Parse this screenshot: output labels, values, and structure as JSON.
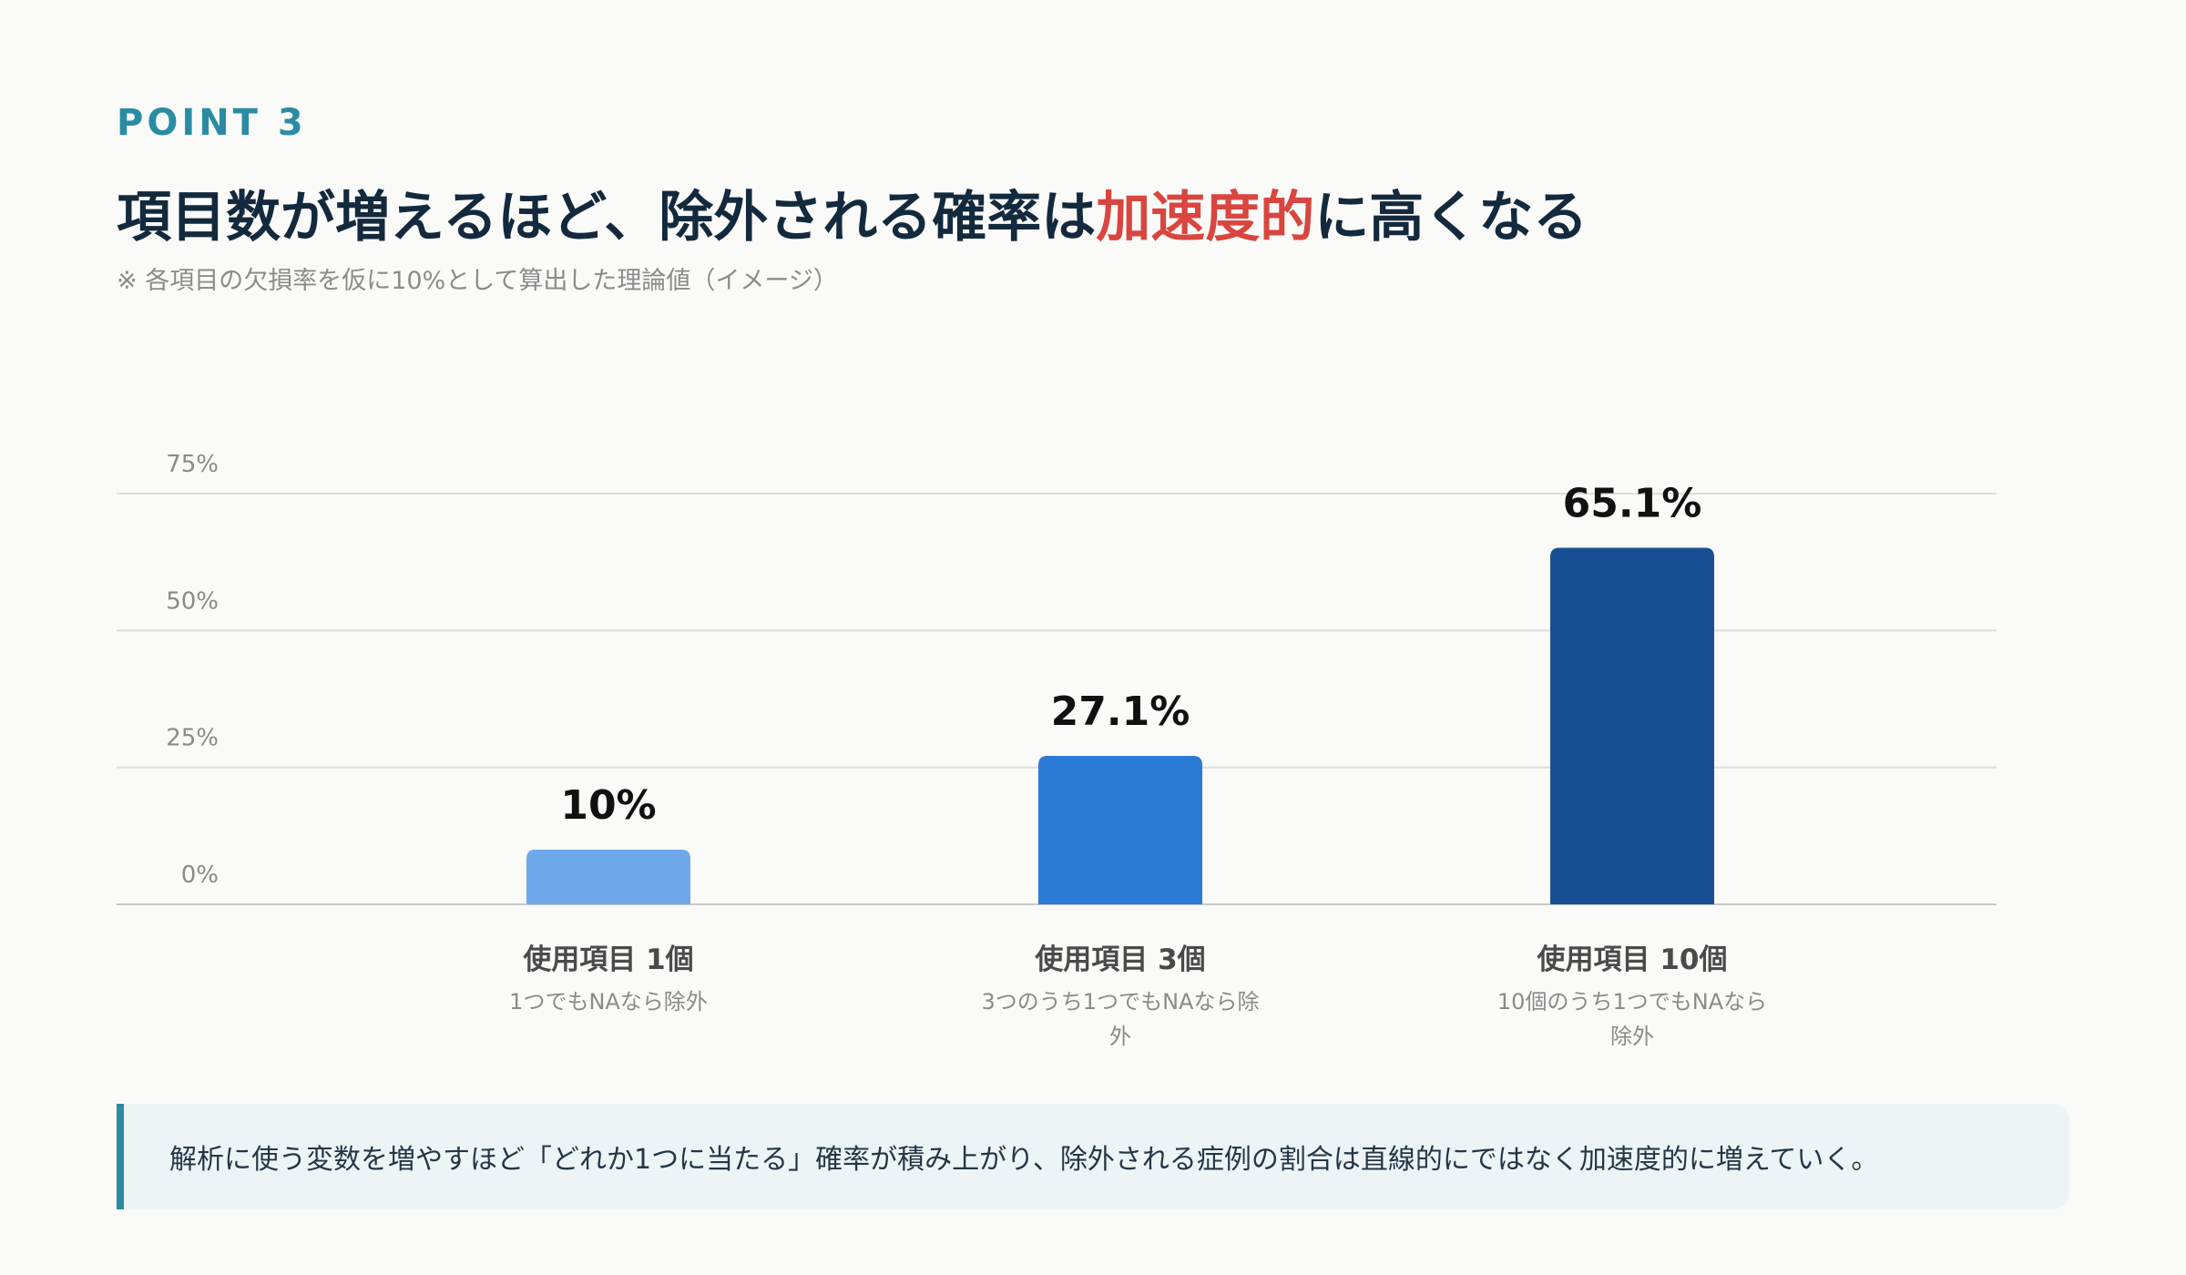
{
  "header": {
    "eyebrow": "POINT 3",
    "title_pre": "項目数が増えるほど、除外される確率は",
    "title_accent": "加速度的",
    "title_post": "に高くなる",
    "note": "※ 各項目の欠損率を仮に10%として算出した理論値（イメージ）"
  },
  "colors": {
    "accent": "#d9463f",
    "teal": "#2a8ca3",
    "bars": [
      "#6ea8eb",
      "#2a7ad6",
      "#184f94"
    ]
  },
  "chart_data": {
    "type": "bar",
    "categories": [
      "使用項目 1個",
      "使用項目 3個",
      "使用項目 10個"
    ],
    "subcategories": [
      "1つでもNAなら除外",
      "3つのうち1つでもNAなら除外",
      "10個のうち1つでもNAなら除外"
    ],
    "values": [
      10,
      27.1,
      65.1
    ],
    "value_labels": [
      "10%",
      "27.1%",
      "65.1%"
    ],
    "yticks": [
      "0%",
      "25%",
      "50%",
      "75%"
    ],
    "ytick_values": [
      0,
      25,
      50,
      75
    ],
    "ylim": [
      0,
      75
    ],
    "grid": true,
    "xlabel": "",
    "ylabel": ""
  },
  "callout": {
    "text": "解析に使う変数を増やすほど「どれか1つに当たる」確率が積み上がり、除外される症例の割合は直線的にではなく加速度的に増えていく。"
  }
}
